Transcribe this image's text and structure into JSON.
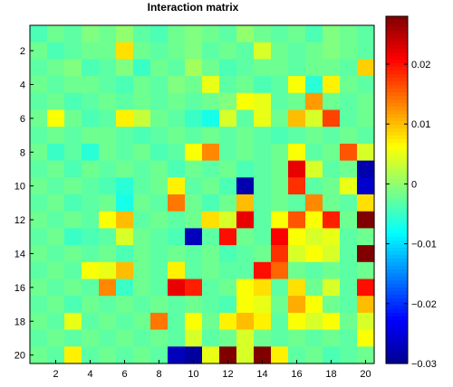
{
  "chart_data": {
    "type": "heatmap",
    "title": "Interaction matrix",
    "rows": 20,
    "cols": 20,
    "x_ticks": [
      "2",
      "4",
      "6",
      "8",
      "10",
      "12",
      "14",
      "16",
      "18",
      "20"
    ],
    "y_ticks": [
      "2",
      "4",
      "6",
      "8",
      "10",
      "12",
      "14",
      "16",
      "18",
      "20"
    ],
    "colorbar": {
      "min": -0.03,
      "max": 0.028,
      "ticks": [
        "0.02",
        "0.01",
        "0",
        "−0.01",
        "−0.02",
        "−0.03"
      ],
      "tick_values": [
        0.02,
        0.01,
        0,
        -0.01,
        -0.02,
        -0.03
      ],
      "colormap": "jet"
    },
    "grid": false,
    "matrix": [
      [
        -0.004,
        -0.002,
        -0.003,
        -0.001,
        -0.002,
        0.0,
        -0.003,
        -0.004,
        -0.002,
        -0.001,
        -0.002,
        -0.003,
        0.0,
        -0.002,
        -0.003,
        -0.002,
        -0.004,
        -0.001,
        -0.002,
        -0.003
      ],
      [
        -0.002,
        -0.004,
        -0.003,
        -0.002,
        -0.002,
        0.008,
        -0.002,
        -0.003,
        -0.002,
        -0.001,
        -0.003,
        -0.002,
        -0.003,
        0.004,
        -0.002,
        -0.003,
        -0.002,
        -0.001,
        -0.002,
        -0.003
      ],
      [
        -0.003,
        -0.002,
        -0.001,
        -0.004,
        -0.003,
        -0.001,
        -0.005,
        -0.002,
        -0.003,
        0.001,
        -0.002,
        -0.004,
        -0.003,
        -0.002,
        -0.002,
        -0.003,
        -0.002,
        -0.002,
        -0.003,
        0.009
      ],
      [
        -0.002,
        -0.003,
        -0.002,
        -0.002,
        -0.003,
        -0.004,
        -0.002,
        -0.003,
        -0.001,
        -0.002,
        0.005,
        -0.003,
        -0.002,
        -0.004,
        -0.003,
        0.006,
        -0.006,
        0.007,
        -0.002,
        -0.003
      ],
      [
        -0.003,
        -0.002,
        -0.004,
        -0.003,
        -0.002,
        -0.003,
        -0.002,
        -0.003,
        -0.002,
        -0.003,
        -0.002,
        -0.001,
        0.006,
        0.005,
        -0.003,
        -0.002,
        0.012,
        -0.002,
        -0.003,
        -0.002
      ],
      [
        -0.002,
        0.006,
        -0.002,
        -0.004,
        -0.003,
        0.007,
        0.003,
        -0.002,
        -0.003,
        -0.005,
        -0.007,
        0.004,
        -0.003,
        0.005,
        -0.002,
        0.01,
        0.004,
        0.017,
        -0.003,
        -0.002
      ],
      [
        -0.003,
        -0.002,
        -0.003,
        -0.002,
        -0.002,
        -0.003,
        -0.004,
        -0.003,
        -0.002,
        -0.003,
        -0.002,
        -0.003,
        -0.002,
        -0.003,
        -0.004,
        -0.003,
        -0.002,
        -0.003,
        -0.002,
        -0.003
      ],
      [
        -0.002,
        -0.005,
        -0.003,
        -0.006,
        -0.002,
        -0.003,
        -0.002,
        -0.004,
        -0.003,
        0.006,
        0.013,
        -0.003,
        -0.002,
        -0.003,
        -0.002,
        0.006,
        -0.003,
        -0.002,
        0.016,
        0.004
      ],
      [
        -0.003,
        -0.002,
        -0.004,
        -0.002,
        -0.003,
        -0.002,
        -0.003,
        -0.002,
        -0.004,
        -0.002,
        -0.003,
        -0.002,
        -0.004,
        -0.003,
        -0.002,
        0.022,
        0.004,
        -0.003,
        -0.002,
        -0.028
      ],
      [
        -0.002,
        -0.003,
        -0.002,
        -0.003,
        -0.004,
        -0.006,
        -0.003,
        -0.002,
        0.007,
        -0.003,
        -0.002,
        -0.004,
        -0.028,
        -0.003,
        -0.002,
        0.018,
        -0.003,
        -0.002,
        0.005,
        -0.026
      ],
      [
        -0.003,
        -0.002,
        -0.004,
        -0.003,
        -0.002,
        -0.007,
        -0.002,
        -0.003,
        0.014,
        -0.002,
        -0.004,
        -0.002,
        0.01,
        -0.003,
        -0.002,
        -0.003,
        0.013,
        -0.002,
        -0.003,
        0.008
      ],
      [
        -0.002,
        -0.003,
        -0.002,
        -0.003,
        0.006,
        0.01,
        -0.003,
        -0.002,
        -0.003,
        -0.002,
        0.008,
        0.004,
        0.022,
        -0.003,
        0.006,
        0.016,
        0.006,
        0.019,
        -0.002,
        0.028
      ],
      [
        -0.003,
        -0.002,
        -0.005,
        -0.004,
        -0.003,
        0.004,
        -0.002,
        -0.003,
        -0.004,
        -0.027,
        -0.003,
        0.02,
        -0.002,
        -0.003,
        0.021,
        0.006,
        0.004,
        0.005,
        -0.003,
        -0.002
      ],
      [
        -0.002,
        -0.003,
        -0.002,
        -0.003,
        -0.002,
        -0.004,
        -0.002,
        -0.003,
        -0.002,
        -0.003,
        -0.002,
        -0.004,
        -0.003,
        -0.002,
        0.018,
        0.004,
        0.006,
        0.004,
        -0.003,
        0.028
      ],
      [
        -0.003,
        -0.002,
        -0.003,
        0.006,
        0.005,
        0.01,
        -0.002,
        -0.003,
        0.007,
        -0.003,
        -0.002,
        -0.003,
        -0.003,
        0.02,
        0.015,
        -0.002,
        -0.003,
        -0.002,
        -0.003,
        -0.002
      ],
      [
        -0.002,
        -0.003,
        -0.002,
        -0.003,
        0.013,
        -0.005,
        -0.002,
        -0.003,
        0.022,
        0.019,
        -0.003,
        -0.002,
        0.006,
        0.008,
        -0.003,
        0.008,
        -0.002,
        0.004,
        -0.003,
        0.02
      ],
      [
        -0.003,
        -0.002,
        -0.004,
        -0.002,
        -0.003,
        -0.002,
        -0.003,
        -0.002,
        -0.003,
        -0.002,
        -0.003,
        -0.004,
        0.006,
        0.005,
        -0.002,
        0.011,
        0.006,
        -0.002,
        -0.003,
        0.01
      ],
      [
        -0.002,
        -0.003,
        0.005,
        -0.003,
        -0.002,
        -0.003,
        -0.002,
        0.014,
        -0.003,
        0.006,
        -0.002,
        0.007,
        0.01,
        0.007,
        -0.003,
        0.006,
        0.004,
        0.006,
        -0.002,
        0.004
      ],
      [
        -0.003,
        -0.002,
        -0.003,
        -0.002,
        -0.003,
        -0.002,
        -0.003,
        -0.002,
        -0.003,
        0.004,
        -0.003,
        -0.002,
        0.004,
        -0.002,
        -0.003,
        -0.002,
        -0.003,
        -0.002,
        -0.003,
        0.006
      ],
      [
        -0.002,
        -0.003,
        0.007,
        -0.003,
        -0.002,
        -0.003,
        -0.002,
        -0.003,
        -0.027,
        -0.029,
        0.005,
        0.028,
        0.004,
        0.028,
        0.007,
        -0.003,
        -0.002,
        -0.004,
        -0.003,
        -0.002
      ]
    ]
  }
}
